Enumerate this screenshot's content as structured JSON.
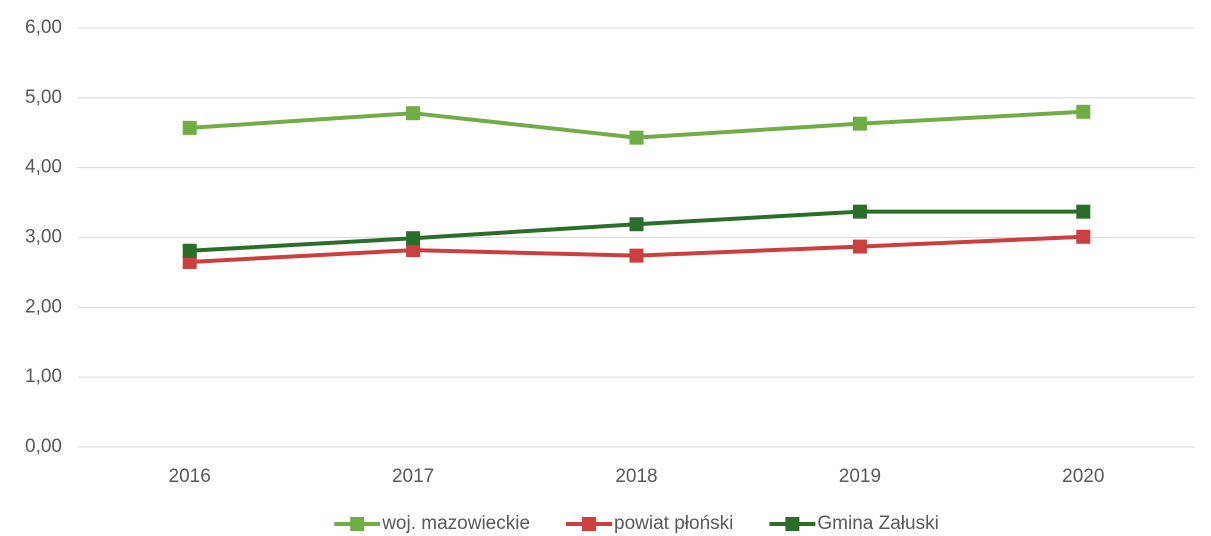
{
  "chart_data": {
    "type": "line",
    "categories": [
      "2016",
      "2017",
      "2018",
      "2019",
      "2020"
    ],
    "series": [
      {
        "name": "woj. mazowieckie",
        "color": "#70ad47",
        "values": [
          4.57,
          4.78,
          4.43,
          4.63,
          4.8
        ]
      },
      {
        "name": "powiat płoński",
        "color": "#cc3f3f",
        "values": [
          2.65,
          2.82,
          2.74,
          2.87,
          3.01
        ]
      },
      {
        "name": "Gmina Załuski",
        "color": "#2a6e2a",
        "values": [
          2.81,
          2.99,
          3.19,
          3.37,
          3.37
        ]
      }
    ],
    "ylim": [
      0,
      6
    ],
    "yticks": [
      {
        "value": 0,
        "label": "0,00"
      },
      {
        "value": 1,
        "label": "1,00"
      },
      {
        "value": 2,
        "label": "2,00"
      },
      {
        "value": 3,
        "label": "3,00"
      },
      {
        "value": 4,
        "label": "4,00"
      },
      {
        "value": 5,
        "label": "5,00"
      },
      {
        "value": 6,
        "label": "6,00"
      }
    ],
    "grid": true,
    "legend": "bottom"
  }
}
